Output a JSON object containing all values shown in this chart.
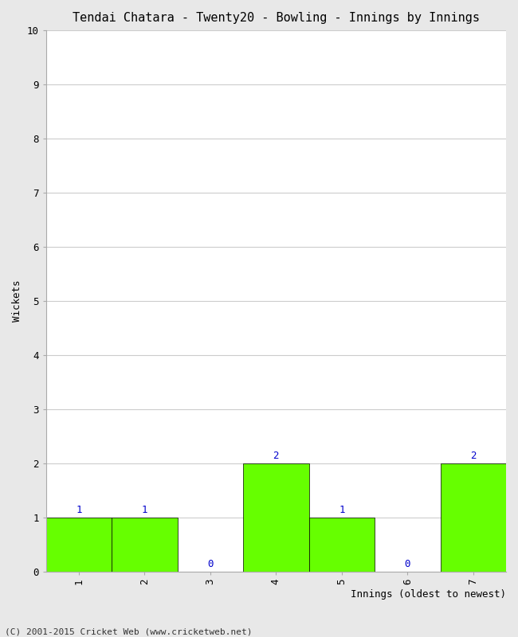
{
  "title": "Tendai Chatara - Twenty20 - Bowling - Innings by Innings",
  "xlabel": "Innings (oldest to newest)",
  "ylabel": "Wickets",
  "categories": [
    "1",
    "2",
    "3",
    "4",
    "5",
    "6",
    "7"
  ],
  "values": [
    1,
    1,
    0,
    2,
    1,
    0,
    2
  ],
  "bar_color": "#66ff00",
  "bar_edge_color": "#000000",
  "bar_edge_width": 0.5,
  "ylim": [
    0,
    10
  ],
  "yticks": [
    0,
    1,
    2,
    3,
    4,
    5,
    6,
    7,
    8,
    9,
    10
  ],
  "background_color": "#e8e8e8",
  "plot_bg_color": "#ffffff",
  "grid_color": "#cccccc",
  "label_color": "#0000cc",
  "title_fontsize": 11,
  "axis_label_fontsize": 9,
  "tick_fontsize": 9,
  "annotation_fontsize": 9,
  "footer_text": "(C) 2001-2015 Cricket Web (www.cricketweb.net)",
  "footer_fontsize": 8,
  "font_family": "monospace"
}
